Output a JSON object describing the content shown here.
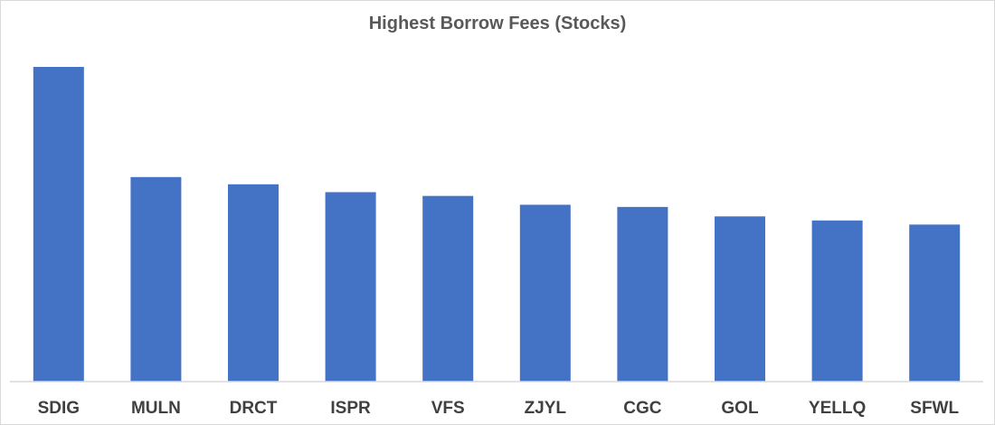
{
  "chart_data": {
    "type": "bar",
    "title": "Highest Borrow Fees (Stocks)",
    "xlabel": "",
    "ylabel": "",
    "categories": [
      "SDIG",
      "MULN",
      "DRCT",
      "ISPR",
      "VFS",
      "ZJYL",
      "CGC",
      "GOL",
      "YELLQ",
      "SFWL"
    ],
    "values": [
      100,
      65,
      62.7,
      60.2,
      59,
      56.2,
      55.5,
      52.5,
      51.2,
      49.9
    ],
    "ylim": [
      0,
      100
    ],
    "grid": false,
    "legend": "none",
    "bar_color": "#4472C4"
  }
}
